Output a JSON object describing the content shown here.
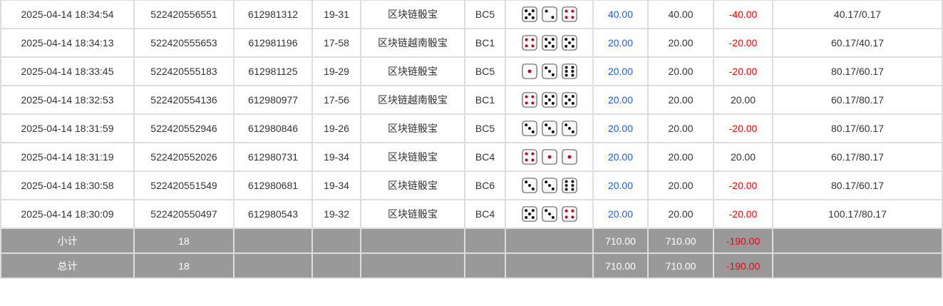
{
  "rows": [
    {
      "time": "2025-04-14 18:34:54",
      "order": "522420556551",
      "issue": "612981312",
      "table": "19-31",
      "game": "区块链骰宝",
      "code": "BC5",
      "dice": [
        5,
        2,
        4
      ],
      "bet": "40.00",
      "valid": "40.00",
      "win": "-40.00",
      "balance": "40.17/0.17"
    },
    {
      "time": "2025-04-14 18:34:13",
      "order": "522420555653",
      "issue": "612981196",
      "table": "17-58",
      "game": "区块链越南骰宝",
      "code": "BC1",
      "dice": [
        4,
        5,
        5
      ],
      "bet": "20.00",
      "valid": "20.00",
      "win": "-20.00",
      "balance": "60.17/40.17"
    },
    {
      "time": "2025-04-14 18:33:45",
      "order": "522420555183",
      "issue": "612981125",
      "table": "19-29",
      "game": "区块链骰宝",
      "code": "BC5",
      "dice": [
        1,
        3,
        6
      ],
      "bet": "20.00",
      "valid": "20.00",
      "win": "-20.00",
      "balance": "80.17/60.17"
    },
    {
      "time": "2025-04-14 18:32:53",
      "order": "522420554136",
      "issue": "612980977",
      "table": "17-56",
      "game": "区块链越南骰宝",
      "code": "BC1",
      "dice": [
        4,
        5,
        5
      ],
      "bet": "20.00",
      "valid": "20.00",
      "win": "20.00",
      "balance": "60.17/80.17"
    },
    {
      "time": "2025-04-14 18:31:59",
      "order": "522420552946",
      "issue": "612980846",
      "table": "19-26",
      "game": "区块链骰宝",
      "code": "BC5",
      "dice": [
        3,
        3,
        3
      ],
      "bet": "20.00",
      "valid": "20.00",
      "win": "-20.00",
      "balance": "80.17/60.17"
    },
    {
      "time": "2025-04-14 18:31:19",
      "order": "522420552026",
      "issue": "612980731",
      "table": "19-34",
      "game": "区块链骰宝",
      "code": "BC4",
      "dice": [
        4,
        1,
        1
      ],
      "bet": "20.00",
      "valid": "20.00",
      "win": "20.00",
      "balance": "60.17/80.17"
    },
    {
      "time": "2025-04-14 18:30:58",
      "order": "522420551549",
      "issue": "612980681",
      "table": "19-34",
      "game": "区块链骰宝",
      "code": "BC6",
      "dice": [
        3,
        3,
        6
      ],
      "bet": "20.00",
      "valid": "20.00",
      "win": "-20.00",
      "balance": "80.17/60.17"
    },
    {
      "time": "2025-04-14 18:30:09",
      "order": "522420550497",
      "issue": "612980543",
      "table": "19-32",
      "game": "区块链骰宝",
      "code": "BC4",
      "dice": [
        5,
        3,
        4
      ],
      "bet": "20.00",
      "valid": "20.00",
      "win": "-20.00",
      "balance": "100.17/80.17"
    }
  ],
  "footer": [
    {
      "label": "小计",
      "count": "18",
      "bet": "710.00",
      "valid": "710.00",
      "win": "-190.00"
    },
    {
      "label": "总计",
      "count": "18",
      "bet": "710.00",
      "valid": "710.00",
      "win": "-190.00"
    }
  ],
  "colors": {
    "bet": "#1f5fd6",
    "loss": "#ff0000",
    "footer_bg": "#999999",
    "red_pip": "#c0001a"
  }
}
